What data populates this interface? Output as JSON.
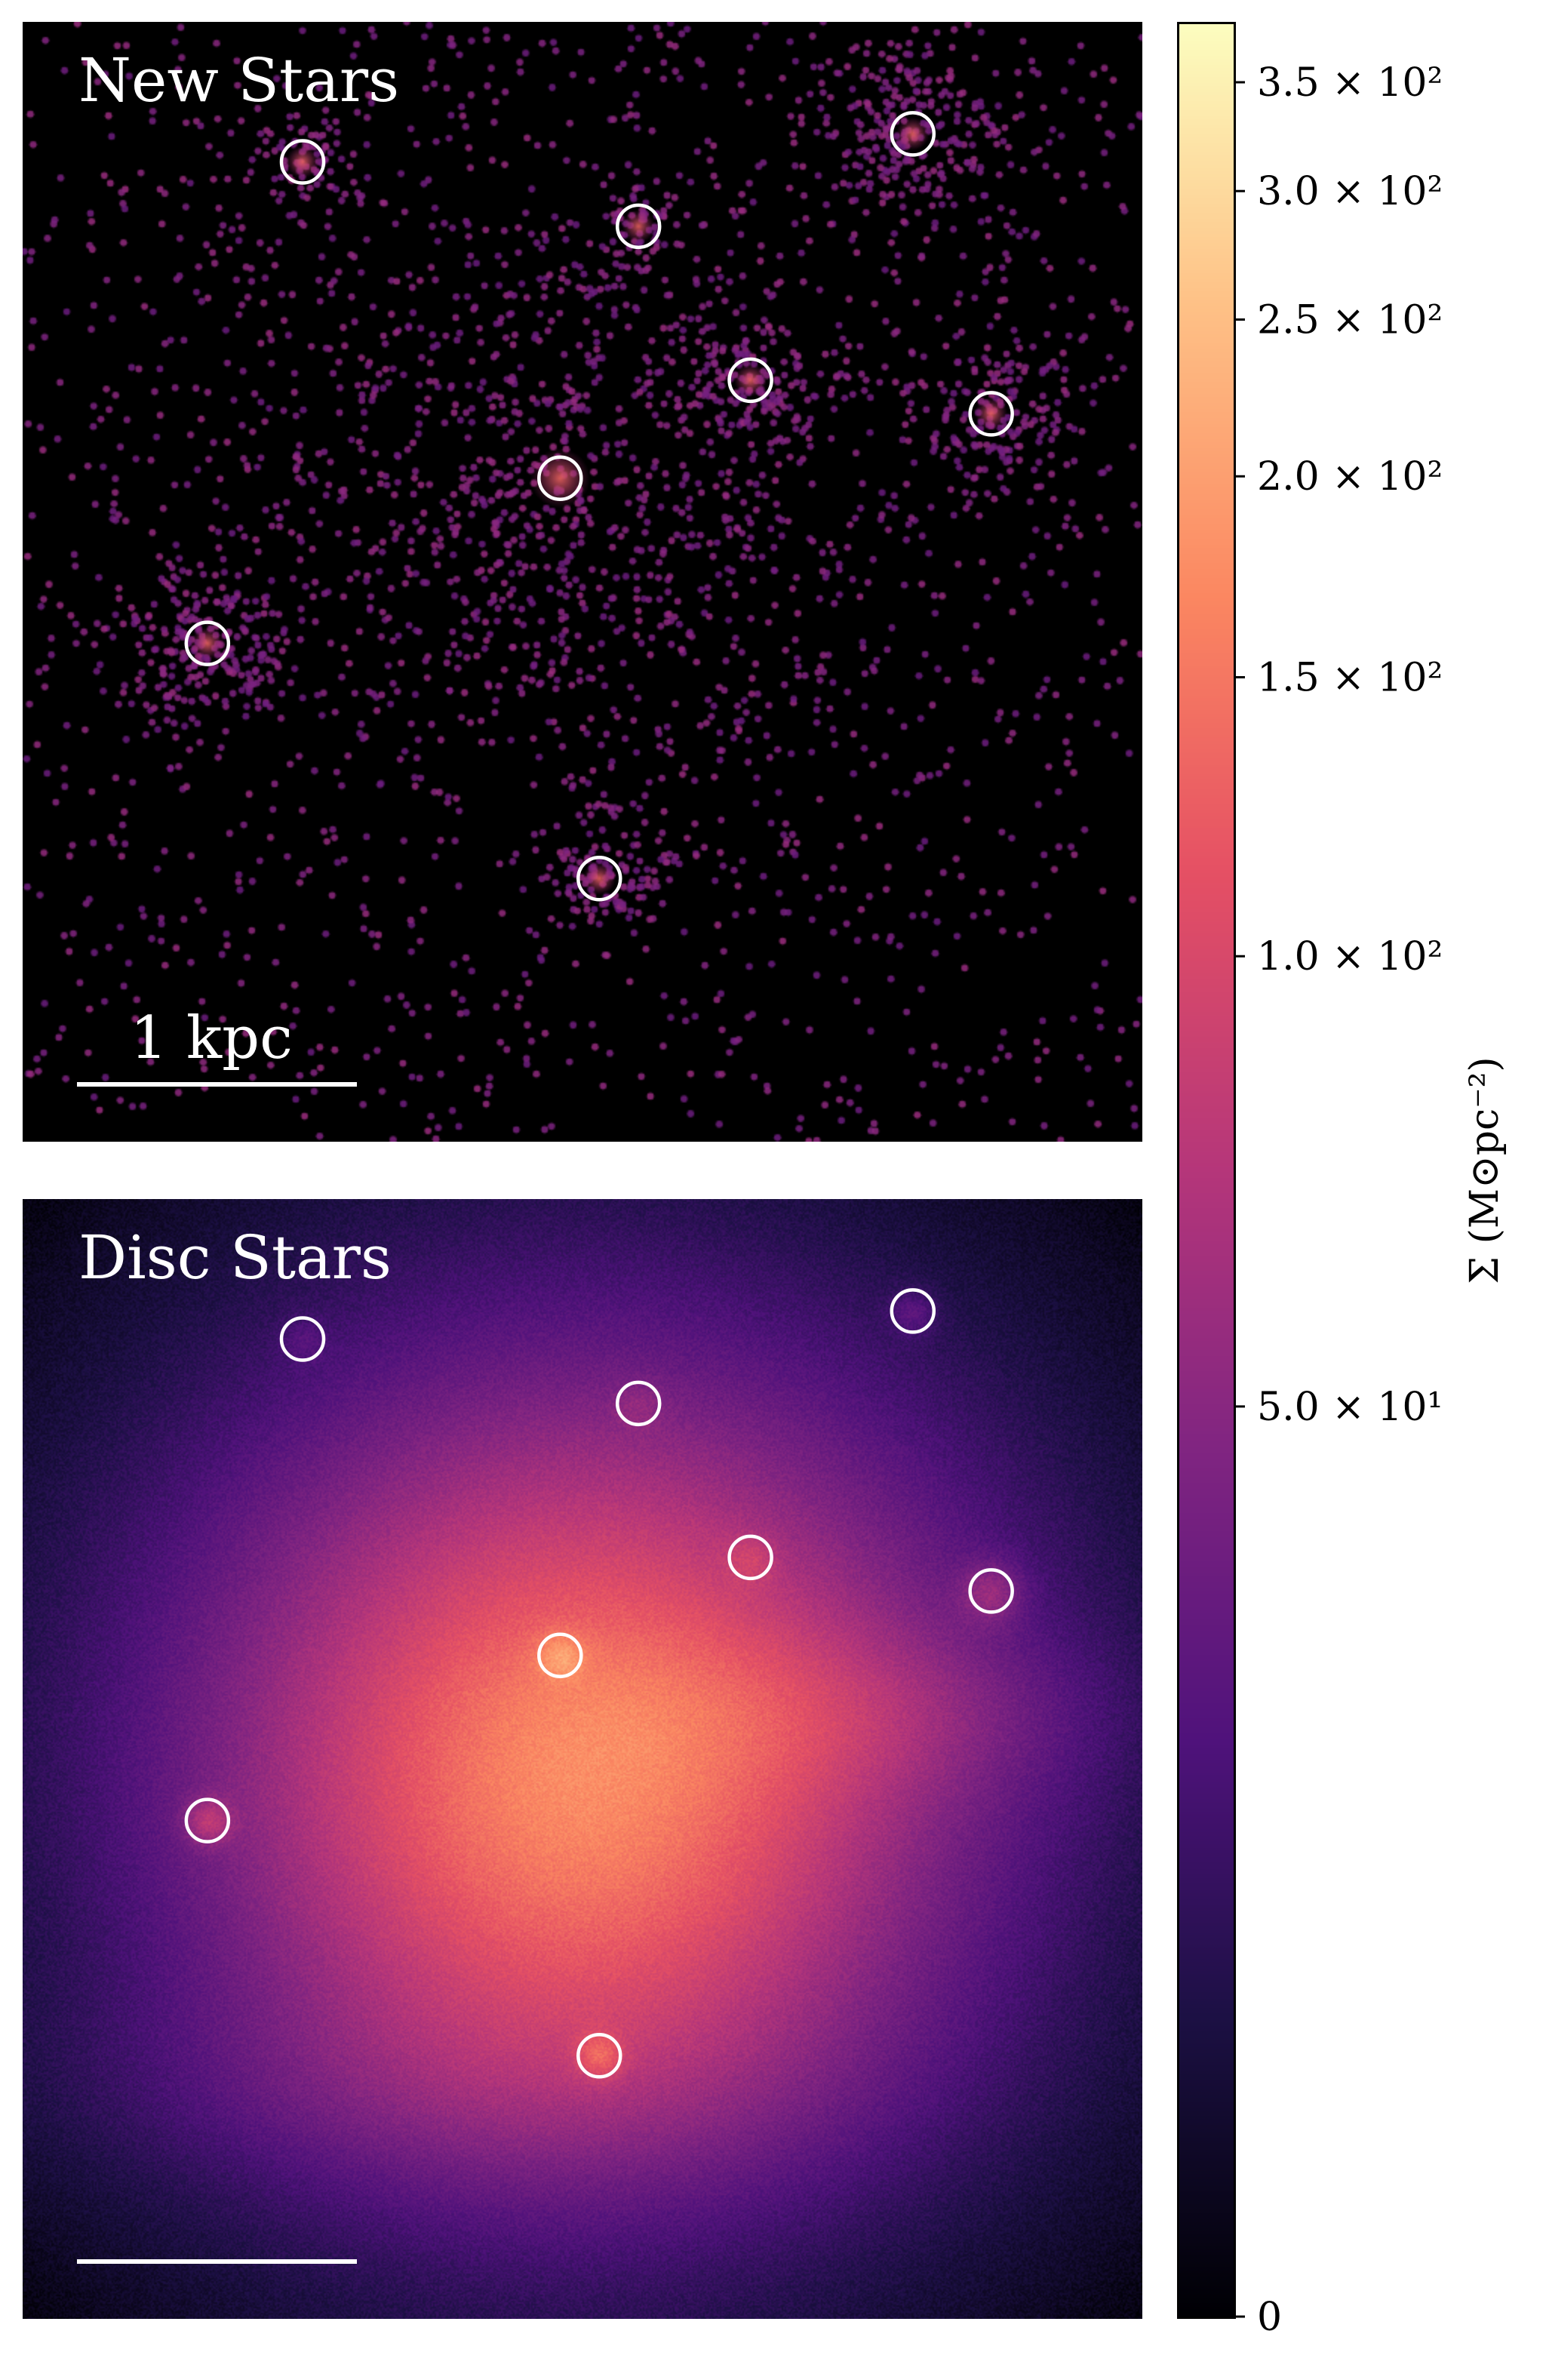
{
  "chart_data": [
    {
      "type": "heatmap",
      "title": "New Stars",
      "scale_bar_label": "1 kpc",
      "extent_kpc": 4,
      "scale_bar_kpc": 1,
      "clusters_kpc": [
        {
          "x": -1.0,
          "y": 1.5
        },
        {
          "x": 0.2,
          "y": 1.27
        },
        {
          "x": 1.18,
          "y": 1.6
        },
        {
          "x": 0.6,
          "y": 0.72
        },
        {
          "x": 1.46,
          "y": 0.6
        },
        {
          "x": -0.08,
          "y": 0.37
        },
        {
          "x": -1.34,
          "y": -0.22
        },
        {
          "x": 0.06,
          "y": -1.06
        }
      ],
      "circle_color": "#ffffff"
    },
    {
      "type": "heatmap",
      "title": "Disc Stars",
      "extent_kpc": 4,
      "scale_bar_kpc": 1,
      "clusters_kpc": [
        {
          "x": -1.0,
          "y": 1.5
        },
        {
          "x": 0.2,
          "y": 1.27
        },
        {
          "x": 1.18,
          "y": 1.6
        },
        {
          "x": 0.6,
          "y": 0.72
        },
        {
          "x": 1.46,
          "y": 0.6
        },
        {
          "x": -0.08,
          "y": 0.37
        },
        {
          "x": -1.34,
          "y": -0.22
        },
        {
          "x": 0.06,
          "y": -1.06
        }
      ],
      "circle_color": "#ffffff"
    }
  ],
  "colorbar": {
    "label": "Σ (M⊙pc⁻²)",
    "colormap": "magma",
    "scale": "asinh",
    "range": [
      0,
      380
    ],
    "ticks": [
      {
        "value": 0,
        "label": "0"
      },
      {
        "value": 50,
        "label": "5.0 × 10¹"
      },
      {
        "value": 100,
        "label": "1.0 × 10²"
      },
      {
        "value": 150,
        "label": "1.5 × 10²"
      },
      {
        "value": 200,
        "label": "2.0 × 10²"
      },
      {
        "value": 250,
        "label": "2.5 × 10²"
      },
      {
        "value": 300,
        "label": "3.0 × 10²"
      },
      {
        "value": 350,
        "label": "3.5 × 10²"
      }
    ]
  }
}
